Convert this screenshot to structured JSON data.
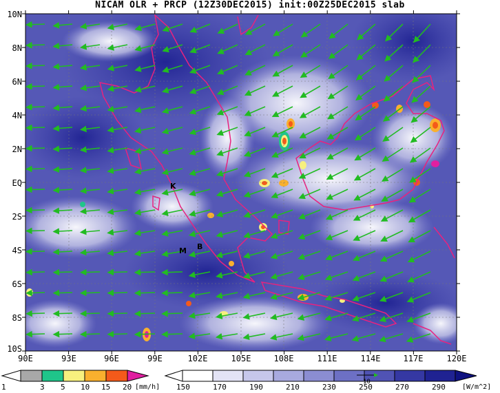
{
  "title": "NICAM OLR + PRCP (12Z30DEC2015) init:00Z25DEC2015 slab",
  "map": {
    "lat_labels": [
      "10N",
      "8N",
      "6N",
      "4N",
      "2N",
      "EQ",
      "2S",
      "4S",
      "6S",
      "8S",
      "10S"
    ],
    "lon_labels": [
      "90E",
      "93E",
      "96E",
      "99E",
      "102E",
      "105E",
      "108E",
      "111E",
      "114E",
      "117E",
      "120E"
    ],
    "place_marks": [
      {
        "label": "K",
        "lon": 100.7,
        "lat": -0.2
      },
      {
        "label": "M",
        "lon": 100.4,
        "lat": -4.1
      },
      {
        "label": "B",
        "lon": 101.5,
        "lat": -3.8
      }
    ]
  },
  "precip_colorbar": {
    "ticks": [
      "1",
      "3",
      "5",
      "10",
      "15",
      "20"
    ],
    "unit": "[mm/h]",
    "colors": [
      "#a8a8a8",
      "#1fc58a",
      "#f7f07e",
      "#f9b02e",
      "#f45a1a",
      "#e01fa0"
    ]
  },
  "olr_colorbar": {
    "ticks": [
      "150",
      "170",
      "190",
      "210",
      "230",
      "250",
      "270",
      "290"
    ],
    "unit": "[W/m^2]",
    "colors": [
      "#ffffff",
      "#e3e3f5",
      "#c6c7eb",
      "#a8aadf",
      "#8b8dd2",
      "#6d70c4",
      "#5053b4",
      "#3538a3",
      "#1f2292",
      "#0f1280"
    ],
    "vector_scale_label": "10"
  }
}
